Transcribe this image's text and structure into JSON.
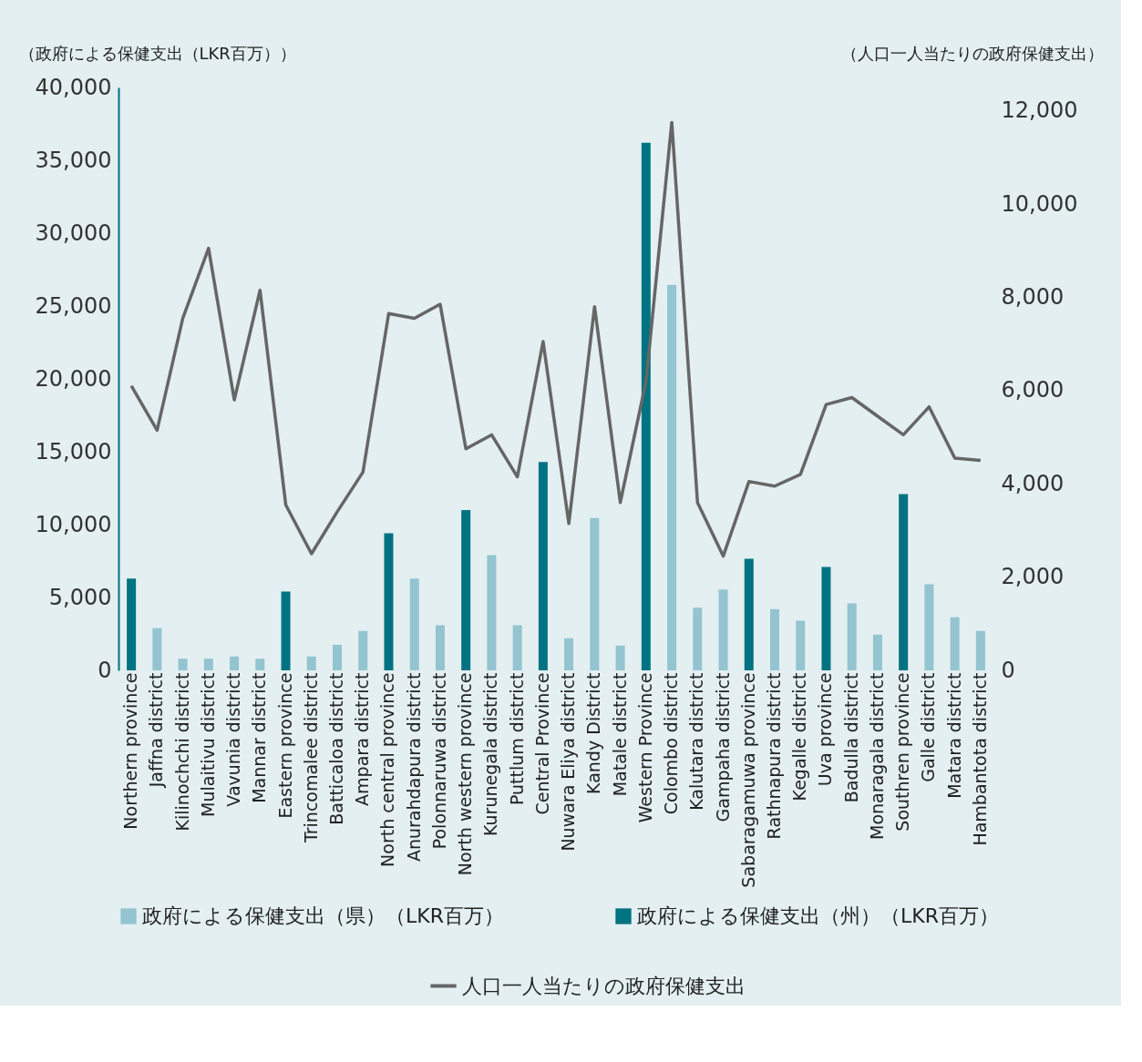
{
  "chart_data": {
    "type": "bar",
    "ylabel": "（政府による保健支出（LKR百万））",
    "y2label": "（人口一人当たりの政府保健支出）",
    "categories": [
      "Northern province",
      "Jaffna district",
      "Kilinochchi district",
      "Mulaitivu district",
      "Vavunia district",
      "Mannar district",
      "Eastern province",
      "Trincomalee district",
      "Batticaloa district",
      "Ampara district",
      "North central province",
      "Anurahdapura district",
      "Polonnaruwa district",
      "North western province",
      "Kurunegala district",
      "Puttlum district",
      "Central Province",
      "Nuwara Eliya district",
      "Kandy District",
      "Matale district",
      "Western Province",
      "Colombo district",
      "Kalutara district",
      "Gampaha district",
      "Sabaragamuwa province",
      "Rathnapura district",
      "Kegalle district",
      "Uva province",
      "Badulla district",
      "Monaragala district",
      "Southren province",
      "Galle district",
      "Matara district",
      "Hambantota district"
    ],
    "series": [
      {
        "name": "政府による保健支出（県）（LKR百万）",
        "color": "#93c4d0",
        "values": [
          null,
          2900,
          800,
          800,
          950,
          800,
          null,
          950,
          1750,
          2700,
          null,
          6300,
          3100,
          null,
          7900,
          3100,
          null,
          2200,
          10450,
          1700,
          null,
          26450,
          4300,
          5550,
          null,
          4200,
          3400,
          null,
          4600,
          2450,
          null,
          5900,
          3650,
          2700
        ]
      },
      {
        "name": "政府による保健支出（州）（LKR百万）",
        "color": "#007382",
        "values": [
          6300,
          null,
          null,
          null,
          null,
          null,
          5400,
          null,
          null,
          null,
          9400,
          null,
          null,
          11000,
          null,
          null,
          14300,
          null,
          null,
          null,
          36200,
          null,
          null,
          null,
          7650,
          null,
          null,
          7100,
          null,
          null,
          12100,
          null,
          null,
          null
        ]
      },
      {
        "name": "人口一人当たりの政府保健支出",
        "type": "line",
        "axis": "y2",
        "color": "#666666",
        "values": [
          6100,
          5150,
          7550,
          9050,
          5800,
          8150,
          3550,
          2500,
          3400,
          4250,
          7650,
          7550,
          7850,
          4750,
          5050,
          4150,
          7050,
          3150,
          7800,
          3600,
          6200,
          11750,
          3600,
          2450,
          4050,
          3950,
          4200,
          5700,
          5850,
          5450,
          5050,
          5650,
          4550,
          4500
        ]
      }
    ],
    "ylim": [
      0,
      40000
    ],
    "yticks": [
      0,
      {
        "value": 5000,
        "label": "5,000"
      },
      {
        "value": 10000,
        "label": "10,000"
      },
      {
        "value": 15000,
        "label": "15,000"
      },
      {
        "value": 20000,
        "label": "20,000"
      },
      {
        "value": 25000,
        "label": "25,000"
      },
      {
        "value": 30000,
        "label": "30,000"
      },
      {
        "value": 35000,
        "label": "35,000"
      },
      {
        "value": 40000,
        "label": "40,000"
      }
    ],
    "y2lim": [
      0,
      12500
    ],
    "y2ticks": [
      0,
      {
        "value": 2000,
        "label": "2,000"
      },
      {
        "value": 4000,
        "label": "4,000"
      },
      {
        "value": 6000,
        "label": "6,000"
      },
      {
        "value": 8000,
        "label": "8,000"
      },
      {
        "value": 10000,
        "label": "10,000"
      },
      {
        "value": 12000,
        "label": "12,000"
      }
    ],
    "grid": false,
    "legend": "bottom",
    "line_style": "solid",
    "marker": "none"
  }
}
